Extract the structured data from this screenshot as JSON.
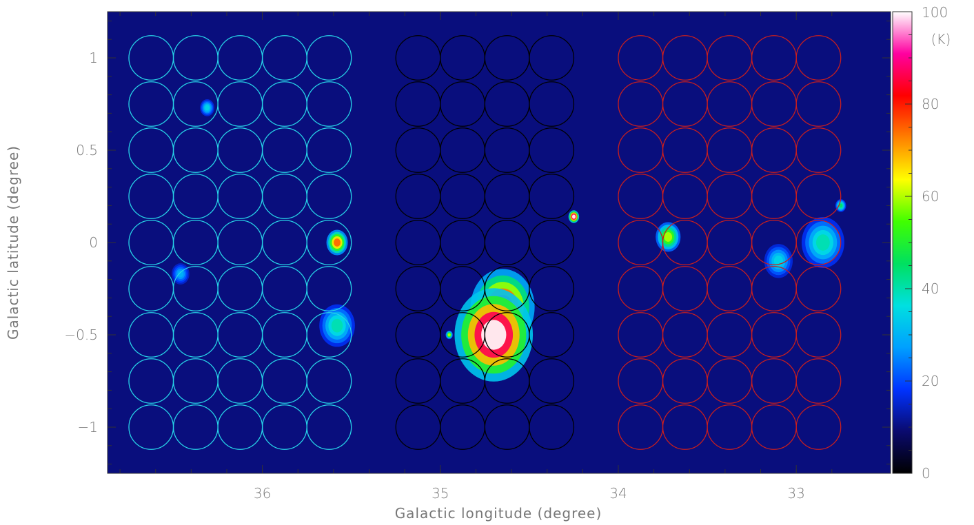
{
  "chart_data": {
    "type": "heatmap",
    "xlabel": "Galactic longitude (degree)",
    "ylabel": "Galactic latitude (degree)",
    "xlim": [
      36.87,
      32.47
    ],
    "ylim": [
      -1.25,
      1.25
    ],
    "x_ticks": [
      36,
      35,
      34,
      33
    ],
    "x_tick_labels": [
      "36",
      "35",
      "34",
      "33"
    ],
    "y_ticks": [
      -1,
      -0.5,
      0,
      0.5,
      1
    ],
    "y_tick_labels": [
      "−1",
      "−0.5",
      "0",
      "0.5",
      "1"
    ],
    "colorbar": {
      "label": "(K)",
      "range": [
        0,
        100
      ],
      "ticks": [
        0,
        20,
        40,
        60,
        80,
        100
      ],
      "tick_labels": [
        "0",
        "20",
        "40",
        "60",
        "80",
        "100"
      ],
      "colors": [
        "#000000",
        "#0a0a6e",
        "#0033ff",
        "#00a0ff",
        "#00e0e0",
        "#00e060",
        "#40ff00",
        "#ffff00",
        "#ff8000",
        "#ff0000",
        "#ff00a0",
        "#ffffff"
      ]
    },
    "map": {
      "background_level_K": 10,
      "sources": [
        {
          "l": 34.7,
          "b": -0.5,
          "peak_K": 100,
          "size": 0.22
        },
        {
          "l": 34.65,
          "b": -0.35,
          "peak_K": 85,
          "size": 0.18
        },
        {
          "l": 35.58,
          "b": 0.0,
          "peak_K": 75,
          "size": 0.06
        },
        {
          "l": 35.58,
          "b": -0.45,
          "peak_K": 40,
          "size": 0.1
        },
        {
          "l": 33.72,
          "b": 0.03,
          "peak_K": 60,
          "size": 0.07
        },
        {
          "l": 34.25,
          "b": 0.14,
          "peak_K": 100,
          "size": 0.03
        },
        {
          "l": 36.31,
          "b": 0.73,
          "peak_K": 35,
          "size": 0.04
        },
        {
          "l": 32.85,
          "b": 0.0,
          "peak_K": 40,
          "size": 0.12
        },
        {
          "l": 33.1,
          "b": -0.1,
          "peak_K": 35,
          "size": 0.08
        },
        {
          "l": 36.46,
          "b": -0.17,
          "peak_K": 30,
          "size": 0.05
        },
        {
          "l": 34.95,
          "b": -0.5,
          "peak_K": 60,
          "size": 0.02
        },
        {
          "l": 32.75,
          "b": 0.2,
          "peak_K": 45,
          "size": 0.03
        }
      ]
    },
    "series": [
      {
        "color": "#27d4e8",
        "l_centers": [
          36.625,
          36.375,
          36.125,
          35.875,
          35.625
        ],
        "b_centers": [
          1.0,
          0.75,
          0.5,
          0.25,
          0.0,
          -0.25,
          -0.5,
          -0.75,
          -1.0
        ],
        "radius_deg": 0.125
      },
      {
        "color": "#000000",
        "l_centers": [
          35.125,
          34.875,
          34.625,
          34.375
        ],
        "b_centers": [
          1.0,
          0.75,
          0.5,
          0.25,
          0.0,
          -0.25,
          -0.5,
          -0.75,
          -1.0
        ],
        "radius_deg": 0.125
      },
      {
        "color": "#c81e1e",
        "l_centers": [
          33.875,
          33.625,
          33.375,
          33.125,
          32.875
        ],
        "b_centers": [
          1.0,
          0.75,
          0.5,
          0.25,
          0.0,
          -0.25,
          -0.5,
          -0.75,
          -1.0
        ],
        "radius_deg": 0.125
      }
    ]
  }
}
